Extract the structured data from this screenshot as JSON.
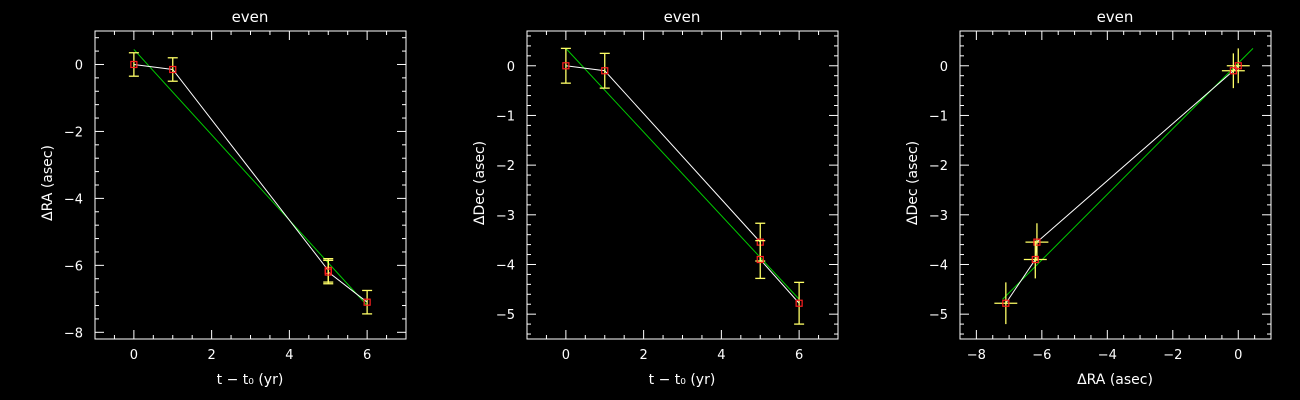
{
  "colors": {
    "background": "#000000",
    "axes": "#ffffff",
    "data_line": "#ffffff",
    "fit_line": "#00cc00",
    "marker": "#ff2020",
    "error_bar": "#ffff66"
  },
  "chart_data": [
    {
      "type": "scatter",
      "title": "even",
      "xlabel": "t − t₀ (yr)",
      "ylabel": "ΔRA (asec)",
      "xlim": [
        -1,
        7
      ],
      "ylim": [
        -8.2,
        1.0
      ],
      "xticks": [
        0,
        2,
        4,
        6
      ],
      "yticks": [
        0,
        -2,
        -4,
        -6,
        -8
      ],
      "points": [
        {
          "x": 0,
          "y": 0.0,
          "yerr": 0.35
        },
        {
          "x": 1,
          "y": -0.15,
          "yerr": 0.35
        },
        {
          "x": 5,
          "y": -6.15,
          "yerr": 0.35
        },
        {
          "x": 5,
          "y": -6.2,
          "yerr": 0.35
        },
        {
          "x": 6,
          "y": -7.1,
          "yerr": 0.35
        }
      ],
      "connect_order": [
        0,
        1,
        2,
        3,
        4
      ],
      "fit": {
        "x": [
          0,
          6
        ],
        "y": [
          0.45,
          -7.2
        ]
      },
      "grid": false
    },
    {
      "type": "scatter",
      "title": "even",
      "xlabel": "t − t₀ (yr)",
      "ylabel": "ΔDec (asec)",
      "xlim": [
        -1,
        7
      ],
      "ylim": [
        -5.5,
        0.7
      ],
      "xticks": [
        0,
        2,
        4,
        6
      ],
      "yticks": [
        0,
        -1,
        -2,
        -3,
        -4,
        -5
      ],
      "points": [
        {
          "x": 0,
          "y": 0.0,
          "yerr": 0.35
        },
        {
          "x": 1,
          "y": -0.1,
          "yerr": 0.35
        },
        {
          "x": 5,
          "y": -3.55,
          "yerr": 0.38
        },
        {
          "x": 5,
          "y": -3.9,
          "yerr": 0.38
        },
        {
          "x": 6,
          "y": -4.78,
          "yerr": 0.42
        }
      ],
      "connect_order": [
        0,
        1,
        2,
        3,
        4
      ],
      "fit": {
        "x": [
          0,
          6
        ],
        "y": [
          0.35,
          -4.7
        ]
      },
      "grid": false
    },
    {
      "type": "scatter",
      "title": "even",
      "xlabel": "ΔRA (asec)",
      "ylabel": "ΔDec (asec)",
      "xlim": [
        -8.5,
        1.0
      ],
      "ylim": [
        -5.5,
        0.7
      ],
      "xticks": [
        -8,
        -6,
        -4,
        -2,
        0
      ],
      "yticks": [
        0,
        -1,
        -2,
        -3,
        -4,
        -5
      ],
      "points": [
        {
          "x": 0.0,
          "y": 0.0,
          "xerr": 0.35,
          "yerr": 0.35
        },
        {
          "x": -0.15,
          "y": -0.1,
          "xerr": 0.35,
          "yerr": 0.35
        },
        {
          "x": -6.15,
          "y": -3.55,
          "xerr": 0.35,
          "yerr": 0.38
        },
        {
          "x": -6.2,
          "y": -3.9,
          "xerr": 0.35,
          "yerr": 0.38
        },
        {
          "x": -7.1,
          "y": -4.78,
          "xerr": 0.35,
          "yerr": 0.42
        }
      ],
      "connect_order": [
        0,
        1,
        2,
        3,
        4
      ],
      "fit": {
        "x": [
          -7.2,
          0.45
        ],
        "y": [
          -4.7,
          0.35
        ]
      },
      "grid": false
    }
  ]
}
